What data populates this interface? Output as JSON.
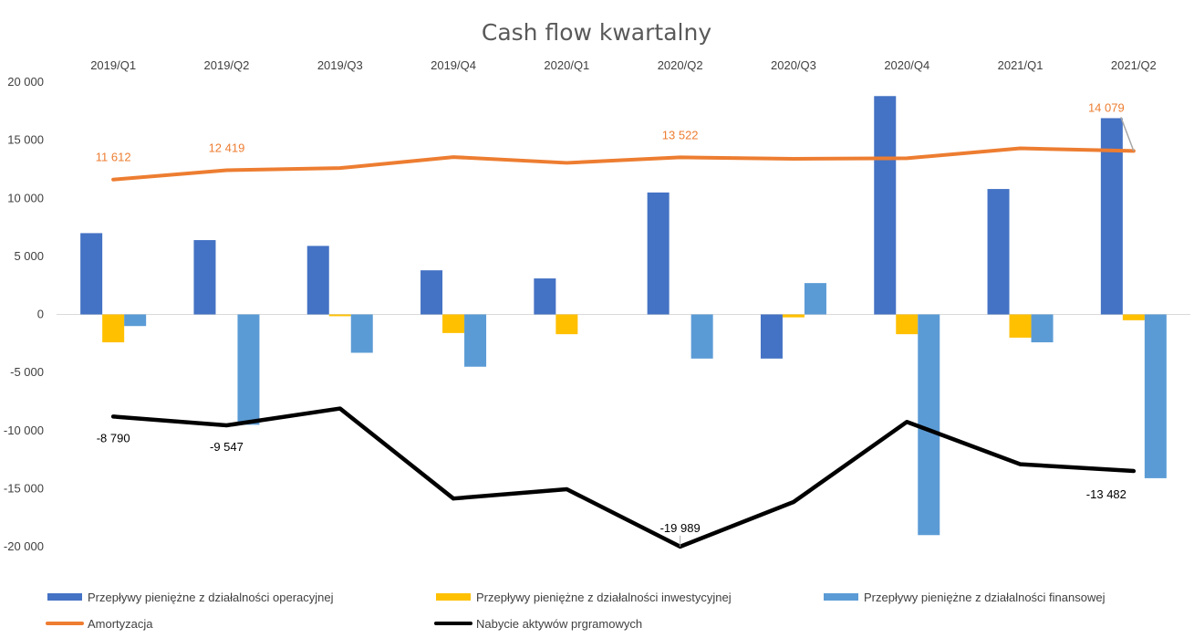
{
  "chart_data": {
    "type": "bar",
    "title": "Cash flow kwartalny",
    "categories": [
      "2019/Q1",
      "2019/Q2",
      "2019/Q3",
      "2019/Q4",
      "2020/Q1",
      "2020/Q2",
      "2020/Q3",
      "2020/Q4",
      "2021/Q1",
      "2021/Q2"
    ],
    "ylim": [
      -20000,
      20000
    ],
    "yticks": [
      20000,
      15000,
      10000,
      5000,
      0,
      -5000,
      -10000,
      -15000,
      -20000
    ],
    "ytick_labels": [
      "20 000",
      "15 000",
      "10 000",
      "5 000",
      "0",
      "-5 000",
      "-10 000",
      "-15 000",
      "-20 000"
    ],
    "grid": false,
    "legend_position": "bottom",
    "bar_series": [
      {
        "name": "Przepływy pieniężne z działalności operacyjnej",
        "color": "#4472C4",
        "values": [
          7000,
          6400,
          5900,
          3800,
          3100,
          10500,
          -3800,
          18800,
          10800,
          16900
        ]
      },
      {
        "name": "Przepływy pieniężne z działalności inwestycyjnej",
        "color": "#FFC000",
        "values": [
          -2400,
          0,
          -150,
          -1600,
          -1700,
          0,
          -250,
          -1700,
          -2000,
          -500
        ]
      },
      {
        "name": "Przepływy pieniężne z działalności finansowej",
        "color": "#5B9BD5",
        "values": [
          -1000,
          -9500,
          -3300,
          -4500,
          0,
          -3800,
          2700,
          -19000,
          -2400,
          -14100
        ]
      }
    ],
    "line_series": [
      {
        "name": "Amortyzacja",
        "color": "#ED7D31",
        "values": [
          11612,
          12419,
          12600,
          13550,
          13050,
          13522,
          13400,
          13450,
          14300,
          14079
        ]
      },
      {
        "name": "Nabycie aktywów prgramowych",
        "color": "#000000",
        "values": [
          -8790,
          -9547,
          -8100,
          -15850,
          -15050,
          -19989,
          -16150,
          -9250,
          -12900,
          -13482
        ]
      }
    ],
    "data_labels": [
      {
        "series": "Amortyzacja",
        "index": 0,
        "text": "11 612",
        "color": "#ED7D31"
      },
      {
        "series": "Amortyzacja",
        "index": 1,
        "text": "12 419",
        "color": "#ED7D31"
      },
      {
        "series": "Amortyzacja",
        "index": 5,
        "text": "13 522",
        "color": "#ED7D31"
      },
      {
        "series": "Amortyzacja",
        "index": 9,
        "text": "14 079",
        "color": "#ED7D31"
      },
      {
        "series": "Nabycie aktywów prgramowych",
        "index": 0,
        "text": "-8 790",
        "color": "#000000"
      },
      {
        "series": "Nabycie aktywów prgramowych",
        "index": 1,
        "text": "-9 547",
        "color": "#000000"
      },
      {
        "series": "Nabycie aktywów prgramowych",
        "index": 5,
        "text": "-19 989",
        "color": "#000000"
      },
      {
        "series": "Nabycie aktywów prgramowych",
        "index": 9,
        "text": "-13 482",
        "color": "#000000"
      }
    ]
  }
}
